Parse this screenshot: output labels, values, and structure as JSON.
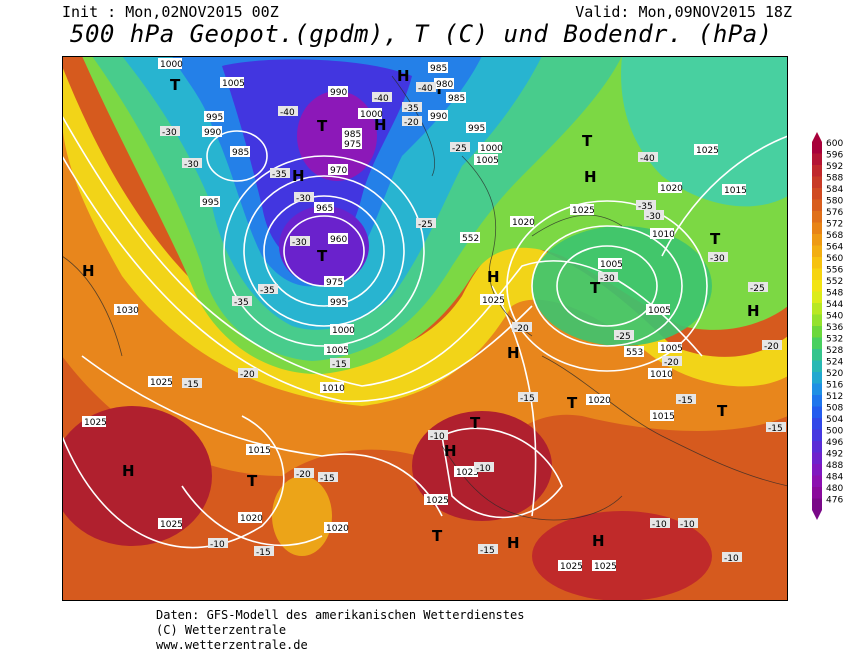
{
  "header": {
    "init": "Init : Mon,02NOV2015 00Z",
    "valid": "Valid: Mon,09NOV2015 18Z",
    "title": "500 hPa Geopot.(gpdm), T (C) und Bodendr. (hPa)"
  },
  "credits": {
    "line1": "Daten: GFS-Modell des amerikanischen Wetterdienstes",
    "line2": "(C) Wetterzentrale",
    "line3": "www.wetterzentrale.de"
  },
  "legend": {
    "values": [
      "600",
      "596",
      "592",
      "588",
      "584",
      "580",
      "576",
      "572",
      "568",
      "564",
      "560",
      "556",
      "552",
      "548",
      "544",
      "540",
      "536",
      "532",
      "528",
      "524",
      "520",
      "516",
      "512",
      "508",
      "504",
      "500",
      "496",
      "492",
      "488",
      "484",
      "480",
      "476"
    ],
    "colors": [
      "#a8003a",
      "#b41434",
      "#c0282c",
      "#c83a26",
      "#d04a22",
      "#d85e1e",
      "#e0701a",
      "#e88416",
      "#ee9a14",
      "#f2ae12",
      "#f6c210",
      "#f6d410",
      "#f2e414",
      "#dcec1a",
      "#b8e824",
      "#94e22e",
      "#6cd83c",
      "#48d060",
      "#34c48c",
      "#28b8b4",
      "#22a8d0",
      "#2090e4",
      "#2076ec",
      "#245cee",
      "#3248e8",
      "#4638e0",
      "#5a2cd6",
      "#6e22cc",
      "#8018c0",
      "#8c10b0",
      "#8a0a9c",
      "#7a0888"
    ]
  },
  "map": {
    "pressure_labels": [
      "1000",
      "1005",
      "995",
      "990",
      "985",
      "980",
      "975",
      "970",
      "965",
      "960",
      "1010",
      "1015",
      "1020",
      "1025",
      "1030",
      "553",
      "552"
    ],
    "temperature_labels": [
      "-10",
      "-15",
      "-20",
      "-25",
      "-30",
      "-35",
      "-40"
    ],
    "high_symbol": "H",
    "low_symbol": "T"
  }
}
